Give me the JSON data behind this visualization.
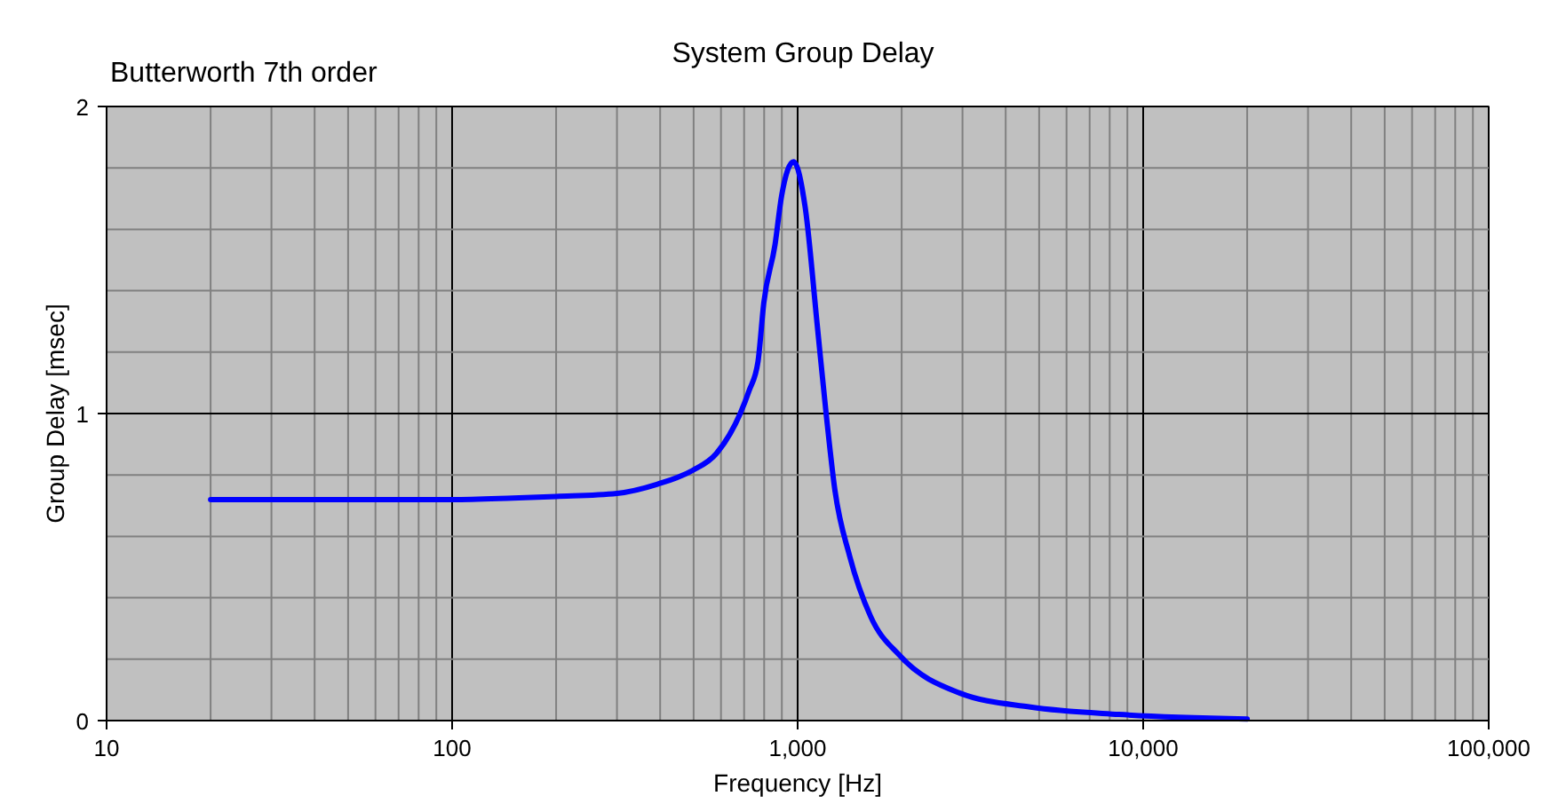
{
  "chart_data": {
    "type": "line",
    "title": "System Group Delay",
    "xlabel": "Frequency [Hz]",
    "ylabel": "Group Delay [msec]",
    "annotations": [
      "Butterworth 7th order"
    ],
    "log": "x",
    "grid": true,
    "line_style": "solid",
    "marker": "none",
    "xlim": [
      10,
      100000
    ],
    "ylim": [
      0,
      2
    ],
    "xticks": [
      10,
      100,
      {
        "value": 1000,
        "label": "1,000"
      },
      {
        "value": 10000,
        "label": "10,000"
      },
      {
        "value": 100000,
        "label": "100,000"
      },
      {
        "value": 20,
        "label": null
      },
      {
        "value": 30,
        "label": null
      },
      {
        "value": 40,
        "label": null
      },
      {
        "value": 50,
        "label": null
      },
      {
        "value": 60,
        "label": null
      },
      {
        "value": 70,
        "label": null
      },
      {
        "value": 80,
        "label": null
      },
      {
        "value": 90,
        "label": null
      },
      {
        "value": 200,
        "label": null
      },
      {
        "value": 300,
        "label": null
      },
      {
        "value": 400,
        "label": null
      },
      {
        "value": 500,
        "label": null
      },
      {
        "value": 600,
        "label": null
      },
      {
        "value": 700,
        "label": null
      },
      {
        "value": 800,
        "label": null
      },
      {
        "value": 900,
        "label": null
      },
      {
        "value": 2000,
        "label": null
      },
      {
        "value": 3000,
        "label": null
      },
      {
        "value": 4000,
        "label": null
      },
      {
        "value": 5000,
        "label": null
      },
      {
        "value": 6000,
        "label": null
      },
      {
        "value": 7000,
        "label": null
      },
      {
        "value": 8000,
        "label": null
      },
      {
        "value": 9000,
        "label": null
      },
      {
        "value": 20000,
        "label": null
      },
      {
        "value": 30000,
        "label": null
      },
      {
        "value": 40000,
        "label": null
      },
      {
        "value": 50000,
        "label": null
      },
      {
        "value": 60000,
        "label": null
      },
      {
        "value": 70000,
        "label": null
      },
      {
        "value": 80000,
        "label": null
      },
      {
        "value": 90000,
        "label": null
      }
    ],
    "yticks": [
      0,
      1,
      2,
      {
        "value": 0.2,
        "label": null
      },
      {
        "value": 0.4,
        "label": null
      },
      {
        "value": 0.6,
        "label": null
      },
      {
        "value": 0.8,
        "label": null
      },
      {
        "value": 1.2,
        "label": null
      },
      {
        "value": 1.4,
        "label": null
      },
      {
        "value": 1.6,
        "label": null
      },
      {
        "value": 1.8,
        "label": null
      }
    ],
    "series": [
      {
        "color": "#0000ff",
        "x": [
          20,
          50,
          100,
          150,
          200,
          300,
          393,
          497,
          582,
          682,
          724,
          768,
          798,
          860,
          899,
          973,
          1052,
          1139,
          1209,
          1282,
          1415,
          1625,
          1982,
          2940,
          4720,
          8510,
          20000
        ],
        "values": [
          0.72,
          0.72,
          0.72,
          0.725,
          0.73,
          0.74,
          0.77,
          0.815,
          0.87,
          1.0,
          1.075,
          1.17,
          1.36,
          1.55,
          1.71,
          1.82,
          1.67,
          1.29,
          1.0,
          0.75,
          0.535,
          0.34,
          0.21,
          0.09,
          0.044,
          0.02,
          0.005
        ]
      }
    ]
  }
}
